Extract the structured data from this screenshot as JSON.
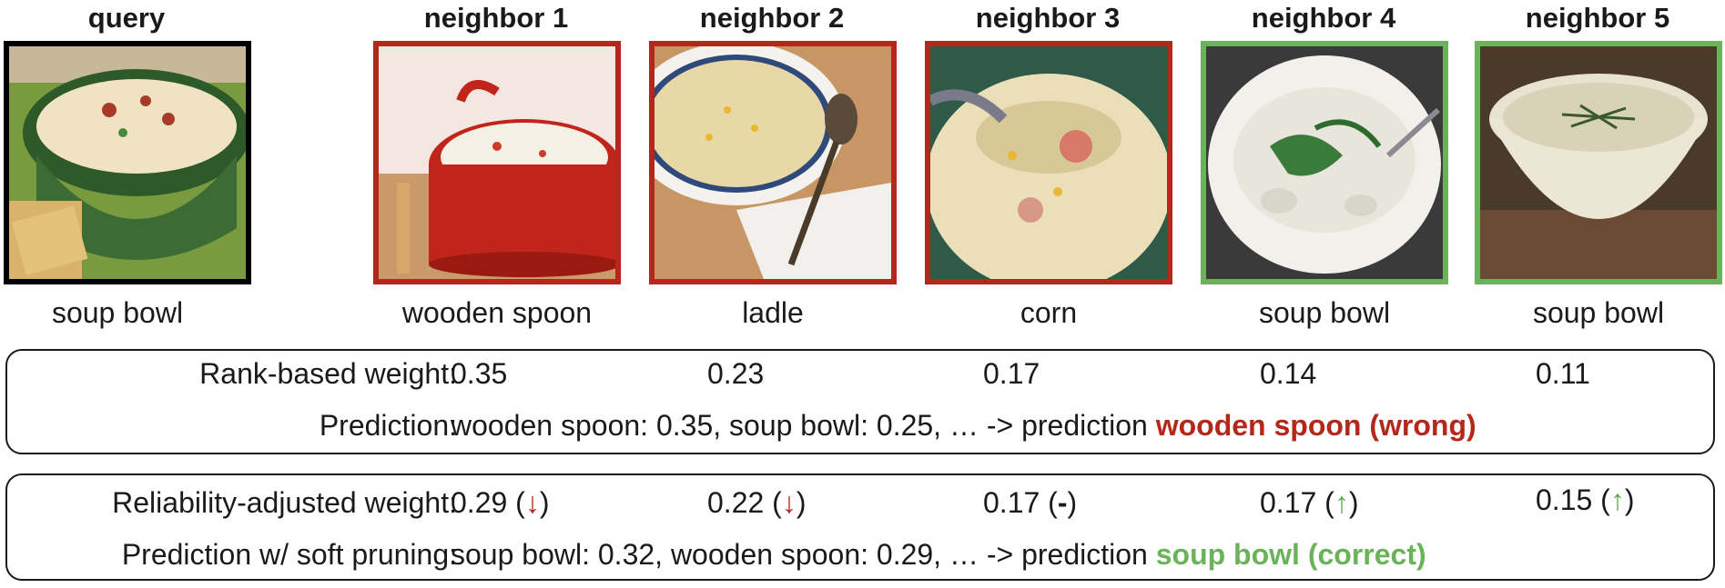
{
  "columns": [
    {
      "title": "query",
      "caption": "soup bowl",
      "border": "#000000"
    },
    {
      "title": "neighbor 1",
      "caption": "wooden spoon",
      "border": "#b5271b"
    },
    {
      "title": "neighbor 2",
      "caption": "ladle",
      "border": "#b5271b"
    },
    {
      "title": "neighbor 3",
      "caption": "corn",
      "border": "#b5271b"
    },
    {
      "title": "neighbor 4",
      "caption": "soup bowl",
      "border": "#6bb35a"
    },
    {
      "title": "neighbor 5",
      "caption": "soup bowl",
      "border": "#6bb35a"
    }
  ],
  "rank_panel": {
    "weight_label": "Rank-based weight:",
    "weights": [
      "0.35",
      "0.23",
      "0.17",
      "0.14",
      "0.11"
    ],
    "prediction_label": "Prediction:",
    "prediction_text": "wooden spoon: 0.35, soup bowl: 0.25, … -> prediction ",
    "prediction_result": "wooden spoon (wrong)"
  },
  "reliability_panel": {
    "weight_label": "Reliability-adjusted weight:",
    "weights": [
      {
        "value": "0.29",
        "arrow": "↓",
        "dir": "down"
      },
      {
        "value": "0.22",
        "arrow": "↓",
        "dir": "down"
      },
      {
        "value": "0.17",
        "arrow": "-",
        "dir": "none"
      },
      {
        "value": "0.17",
        "arrow": "↑",
        "dir": "up"
      },
      {
        "value": "0.15",
        "arrow": "↑",
        "dir": "up"
      }
    ],
    "prediction_label": "Prediction w/ soft pruning:",
    "prediction_text": "soup bowl: 0.32, wooden spoon: 0.29, … -> prediction ",
    "prediction_result": "soup bowl (correct)"
  },
  "colors": {
    "wrong": "#b5271b",
    "correct": "#6bb35a"
  }
}
